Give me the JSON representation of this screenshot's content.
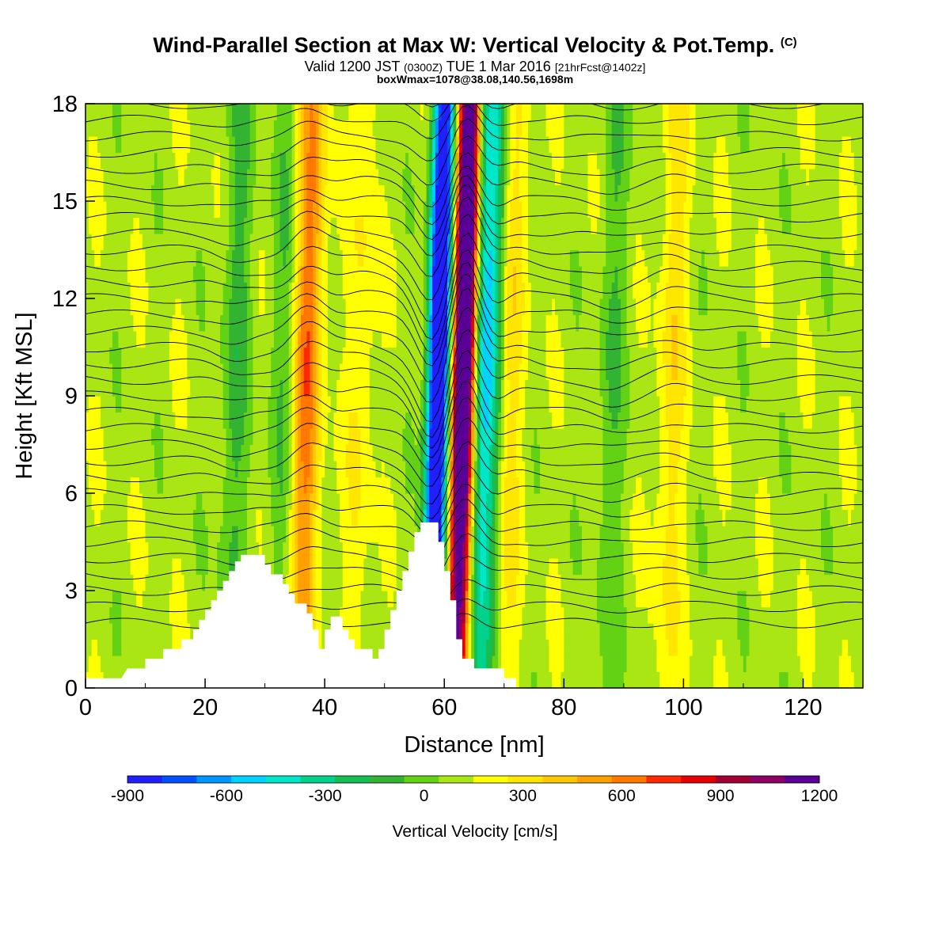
{
  "header": {
    "title": "Wind-Parallel Section at Max W: Vertical Velocity & Pot.Temp.",
    "title_mark": "(C)",
    "valid_prefix": "Valid 1200 JST",
    "valid_utc": "(0300Z)",
    "valid_date": "TUE 1 Mar 2016",
    "valid_fcst": "[21hrFcst@1402z]",
    "boxwmax": "boxWmax=1078@38.08,140.56,1698m"
  },
  "chart_data": {
    "type": "heatmap",
    "title": "Wind-Parallel Section at Max W: Vertical Velocity & Pot.Temp.",
    "xlabel": "Distance [nm]",
    "ylabel": "Height [Kft MSL]",
    "xlim": [
      0,
      130
    ],
    "ylim": [
      0,
      18
    ],
    "x_ticks": [
      0,
      20,
      40,
      60,
      80,
      100,
      120
    ],
    "y_ticks": [
      0,
      3,
      6,
      9,
      12,
      15,
      18
    ],
    "colorbar": {
      "label": "Vertical Velocity [cm/s]",
      "min": -900,
      "max": 1200,
      "step": 100,
      "tick_values": [
        -900,
        -600,
        -300,
        0,
        300,
        600,
        900,
        1200
      ],
      "colors": [
        "#1f1fff",
        "#0052ff",
        "#0096ff",
        "#00d2ff",
        "#00e6c8",
        "#00d28c",
        "#14be50",
        "#32b432",
        "#64d214",
        "#aae614",
        "#ffff00",
        "#ffe600",
        "#ffc800",
        "#ffa000",
        "#ff7800",
        "#ff2800",
        "#e60000",
        "#a00032",
        "#8c0064",
        "#5a0096"
      ]
    },
    "terrain_kft": [
      [
        0,
        0.3
      ],
      [
        6,
        0.3
      ],
      [
        7,
        0.6
      ],
      [
        10,
        0.6
      ],
      [
        10,
        0.9
      ],
      [
        13,
        0.9
      ],
      [
        13,
        1.2
      ],
      [
        16,
        1.2
      ],
      [
        16,
        1.5
      ],
      [
        18,
        1.5
      ],
      [
        18,
        1.8
      ],
      [
        19,
        1.8
      ],
      [
        19,
        2.1
      ],
      [
        20,
        2.1
      ],
      [
        20,
        2.4
      ],
      [
        21,
        2.4
      ],
      [
        21,
        2.7
      ],
      [
        22,
        2.7
      ],
      [
        22,
        3.0
      ],
      [
        23,
        3.0
      ],
      [
        23,
        3.3
      ],
      [
        24,
        3.3
      ],
      [
        24,
        3.6
      ],
      [
        25,
        3.6
      ],
      [
        25,
        3.9
      ],
      [
        26,
        3.9
      ],
      [
        26,
        4.1
      ],
      [
        30,
        4.1
      ],
      [
        30,
        3.8
      ],
      [
        31,
        3.8
      ],
      [
        31,
        3.5
      ],
      [
        33,
        3.5
      ],
      [
        33,
        3.2
      ],
      [
        34,
        3.2
      ],
      [
        34,
        2.9
      ],
      [
        35,
        2.9
      ],
      [
        35,
        2.6
      ],
      [
        37,
        2.6
      ],
      [
        37,
        2.3
      ],
      [
        38,
        2.3
      ],
      [
        38,
        1.8
      ],
      [
        39,
        1.8
      ],
      [
        39,
        1.2
      ],
      [
        40,
        1.2
      ],
      [
        40,
        1.8
      ],
      [
        41,
        1.8
      ],
      [
        41,
        2.2
      ],
      [
        43,
        2.2
      ],
      [
        43,
        1.8
      ],
      [
        44,
        1.8
      ],
      [
        44,
        1.5
      ],
      [
        45,
        1.5
      ],
      [
        45,
        1.2
      ],
      [
        48,
        1.2
      ],
      [
        48,
        0.9
      ],
      [
        49,
        0.9
      ],
      [
        49,
        1.2
      ],
      [
        50,
        1.2
      ],
      [
        50,
        1.8
      ],
      [
        51,
        1.8
      ],
      [
        51,
        2.4
      ],
      [
        52,
        2.4
      ],
      [
        52,
        3.0
      ],
      [
        53,
        3.0
      ],
      [
        53,
        3.6
      ],
      [
        54,
        3.6
      ],
      [
        54,
        4.2
      ],
      [
        55,
        4.2
      ],
      [
        55,
        4.8
      ],
      [
        56,
        4.8
      ],
      [
        56,
        5.1
      ],
      [
        59,
        5.1
      ],
      [
        59,
        4.5
      ],
      [
        60,
        4.5
      ],
      [
        60,
        3.6
      ],
      [
        61,
        3.6
      ],
      [
        61,
        2.7
      ],
      [
        62,
        2.7
      ],
      [
        62,
        1.5
      ],
      [
        63,
        1.5
      ],
      [
        63,
        0.9
      ],
      [
        65,
        0.9
      ],
      [
        65,
        0.6
      ],
      [
        70,
        0.6
      ],
      [
        70,
        0.3
      ],
      [
        72,
        0.3
      ],
      [
        72,
        0
      ],
      [
        130,
        0
      ],
      [
        130,
        0.3
      ],
      [
        130,
        0.3
      ]
    ],
    "w_field_features": [
      {
        "x": 37,
        "w": 500
      },
      {
        "x": 46,
        "w": 150
      },
      {
        "x": 58,
        "w": -750
      },
      {
        "x": 59.5,
        "w": -950
      },
      {
        "x": 62.5,
        "w": 1078
      },
      {
        "x": 64,
        "w": 900
      },
      {
        "x": 67,
        "w": -600
      },
      {
        "x": 71,
        "w": 200
      },
      {
        "x": 25,
        "w": -200
      },
      {
        "x": 33,
        "w": -150
      },
      {
        "x": 98,
        "w": 200
      },
      {
        "x": 88,
        "w": -150
      }
    ]
  }
}
